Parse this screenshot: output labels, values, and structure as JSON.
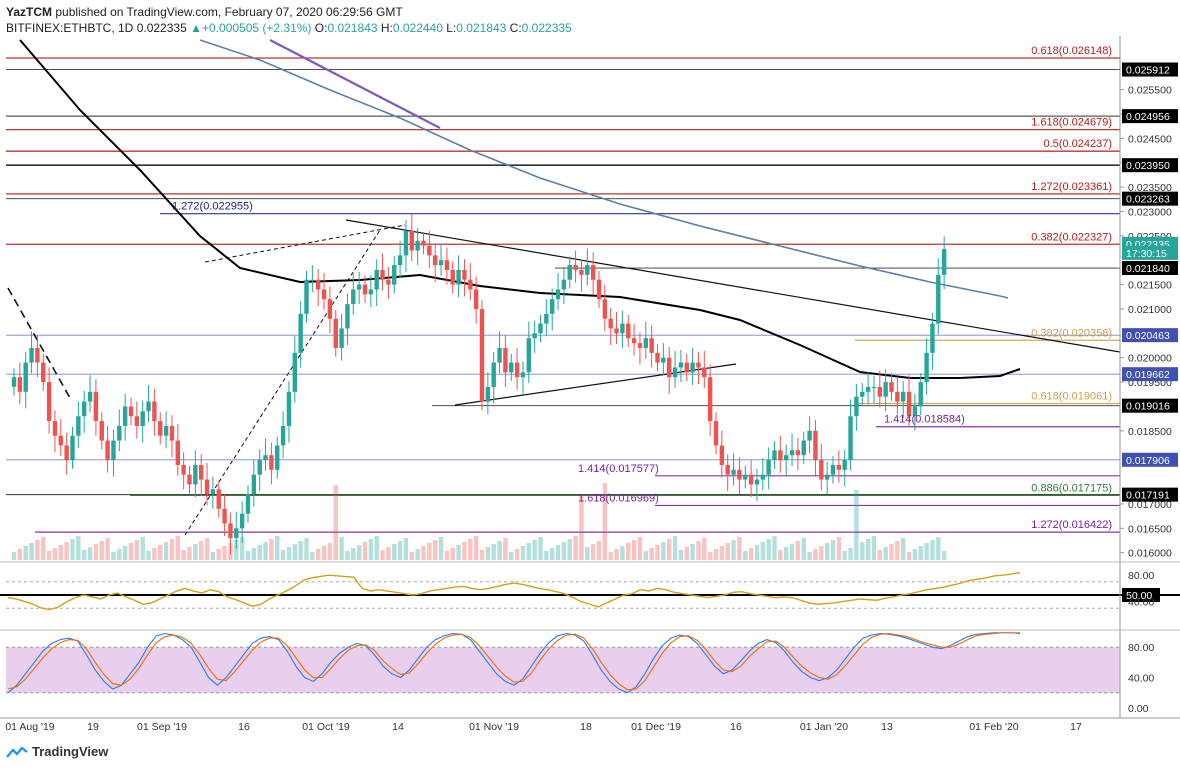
{
  "header": {
    "publisher": "YazTCM",
    "published_text": "published on TradingView.com, February 07, 2020 06:29:56 GMT",
    "symbol": "BITFINEX:ETHBTC, 1D",
    "last": "0.022335",
    "change": "+0.000505 (+2.31%)",
    "o_label": "O:",
    "o": "0.021843",
    "h_label": "H:",
    "h": "0.022440",
    "l_label": "L:",
    "l": "0.021843",
    "c_label": "C:",
    "c": "0.022335"
  },
  "brand": {
    "name": "TradingView"
  },
  "colors": {
    "up": "#26a69a",
    "down": "#ef5350",
    "ma": "#000000",
    "ma200": "#5b7fa8",
    "fib_red": "#b71c1c",
    "fib_gold": "#c9a24a",
    "fib_purple": "#7b1fa2",
    "fib_green": "#2e7d32",
    "fib_blue": "#1a237e",
    "rsi": "#d4a017",
    "stoch_k": "#2979ff",
    "stoch_d": "#ef6c00",
    "stoch_band": "#e1bee7"
  },
  "chart_data": [
    {
      "type": "candlestick",
      "title": "BITFINEX:ETHBTC, 1D",
      "ylim": [
        0.01585,
        0.0266
      ],
      "x_ticks": [
        "01 Aug '19",
        "19",
        "01 Sep '19",
        "16",
        "01 Oct '19",
        "14",
        "01 Nov '19",
        "18",
        "01 Dec '19",
        "16",
        "01 Jan '20",
        "13",
        "01 Feb '20",
        "17"
      ],
      "y_ticks": [
        "0.025500",
        "0.025000",
        "0.024500",
        "0.024000",
        "0.023500",
        "0.023000",
        "0.022500",
        "0.021500",
        "0.021000",
        "0.020000",
        "0.019500",
        "0.018500",
        "0.017000",
        "0.016500",
        "0.016000"
      ],
      "price_tags": [
        {
          "label": "0.025912",
          "value": 0.025912,
          "color": "#000000"
        },
        {
          "label": "0.024956",
          "value": 0.024956,
          "color": "#000000"
        },
        {
          "label": "0.023950",
          "value": 0.02395,
          "color": "#000000"
        },
        {
          "label": "0.023263",
          "value": 0.023263,
          "color": "#000000"
        },
        {
          "label": "0.022335",
          "value": 0.022335,
          "color": "#26a69a"
        },
        {
          "label": "17:30:15",
          "value": 0.02215,
          "color": "#26a69a"
        },
        {
          "label": "0.021840",
          "value": 0.02184,
          "color": "#000000"
        },
        {
          "label": "0.020463",
          "value": 0.020463,
          "color": "#3f51b5"
        },
        {
          "label": "0.019662",
          "value": 0.019662,
          "color": "#3f51b5"
        },
        {
          "label": "0.019016",
          "value": 0.019016,
          "color": "#000000"
        },
        {
          "label": "0.017906",
          "value": 0.017906,
          "color": "#3f51b5"
        },
        {
          "label": "0.017191",
          "value": 0.017191,
          "color": "#000000"
        }
      ],
      "levels": [
        {
          "label": "0.618(0.026148)",
          "value": 0.026148,
          "kind": "red"
        },
        {
          "label": "1.618(0.024679)",
          "value": 0.024679,
          "kind": "red"
        },
        {
          "label": "0.5(0.024237)",
          "value": 0.024237,
          "kind": "red"
        },
        {
          "label": "1.272(0.023361)",
          "value": 0.023361,
          "kind": "red"
        },
        {
          "label": "0.382(0.022327)",
          "value": 0.022327,
          "kind": "red"
        },
        {
          "label": "1.272(0.022955)",
          "value": 0.022955,
          "kind": "blue"
        },
        {
          "label": "0.382(0.020358)",
          "value": 0.020358,
          "kind": "gold"
        },
        {
          "label": "0.618(0.019061)",
          "value": 0.019061,
          "kind": "gold"
        },
        {
          "label": "1.414(0.018584)",
          "value": 0.018584,
          "kind": "purple"
        },
        {
          "label": "1.414(0.017577)",
          "value": 0.017577,
          "kind": "purple"
        },
        {
          "label": "0.886(0.017175)",
          "value": 0.017175,
          "kind": "green"
        },
        {
          "label": "1.618(0.016969)",
          "value": 0.016969,
          "kind": "purple"
        },
        {
          "label": "1.272(0.016422)",
          "value": 0.016422,
          "kind": "purple"
        }
      ],
      "closes": [
        0.0196,
        0.0193,
        0.0199,
        0.0202,
        0.0199,
        0.0195,
        0.0187,
        0.0184,
        0.0182,
        0.0179,
        0.0184,
        0.0188,
        0.0191,
        0.0193,
        0.0187,
        0.0183,
        0.0179,
        0.0183,
        0.0186,
        0.019,
        0.0188,
        0.0186,
        0.0189,
        0.0191,
        0.0187,
        0.0184,
        0.0186,
        0.0183,
        0.0178,
        0.0176,
        0.0174,
        0.0178,
        0.0175,
        0.0172,
        0.0173,
        0.0169,
        0.0166,
        0.0163,
        0.0165,
        0.0168,
        0.0172,
        0.0176,
        0.0179,
        0.018,
        0.0177,
        0.0182,
        0.0186,
        0.0193,
        0.0201,
        0.0209,
        0.0216,
        0.0216,
        0.0214,
        0.0212,
        0.0208,
        0.0202,
        0.0206,
        0.0211,
        0.0214,
        0.0215,
        0.0213,
        0.0214,
        0.0218,
        0.0216,
        0.0215,
        0.0219,
        0.0221,
        0.0226,
        0.0222,
        0.0224,
        0.0223,
        0.0221,
        0.0219,
        0.022,
        0.0218,
        0.0215,
        0.0218,
        0.0216,
        0.0214,
        0.021,
        0.0191,
        0.0194,
        0.0199,
        0.0202,
        0.0197,
        0.0199,
        0.0196,
        0.0197,
        0.0204,
        0.0205,
        0.0207,
        0.0209,
        0.0212,
        0.0214,
        0.0216,
        0.0219,
        0.0218,
        0.0217,
        0.0219,
        0.0216,
        0.0212,
        0.0208,
        0.0206,
        0.0205,
        0.0207,
        0.0204,
        0.0203,
        0.0202,
        0.0204,
        0.0201,
        0.0199,
        0.02,
        0.0196,
        0.0198,
        0.0199,
        0.0197,
        0.0199,
        0.0198,
        0.0196,
        0.0187,
        0.0182,
        0.0178,
        0.0176,
        0.0177,
        0.0175,
        0.0176,
        0.0174,
        0.0175,
        0.0176,
        0.0179,
        0.0181,
        0.0179,
        0.018,
        0.0181,
        0.018,
        0.0183,
        0.0185,
        0.0179,
        0.0175,
        0.0176,
        0.0178,
        0.0177,
        0.0179,
        0.0188,
        0.0192,
        0.0193,
        0.0194,
        0.0194,
        0.0192,
        0.0195,
        0.0193,
        0.0191,
        0.0193,
        0.0188,
        0.019,
        0.0195,
        0.0201,
        0.0207,
        0.0217,
        0.02223
      ]
    },
    {
      "type": "line",
      "title": "",
      "ylim": [
        0,
        100
      ],
      "y_ticks": [
        "80.00",
        "50.00",
        "40.00"
      ],
      "values": [
        46,
        44,
        40,
        36,
        30,
        28,
        32,
        40,
        46,
        50,
        47,
        44,
        50,
        53,
        47,
        42,
        36,
        38,
        44,
        50,
        56,
        60,
        56,
        53,
        58,
        55,
        47,
        43,
        38,
        33,
        36,
        44,
        50,
        56,
        63,
        72,
        76,
        78,
        80,
        79,
        78,
        77,
        60,
        56,
        58,
        56,
        54,
        52,
        50,
        52,
        56,
        58,
        60,
        62,
        63,
        60,
        58,
        60,
        63,
        66,
        68,
        66,
        63,
        60,
        58,
        55,
        52,
        46,
        40,
        36,
        32,
        38,
        44,
        50,
        52,
        58,
        56,
        60,
        58,
        54,
        52,
        50,
        48,
        46,
        48,
        50,
        54,
        55,
        52,
        50,
        48,
        46,
        47,
        46,
        42,
        38,
        36,
        37,
        38,
        40,
        42,
        44,
        43,
        42,
        45,
        47,
        50,
        52,
        55,
        58,
        60,
        62,
        65,
        68,
        72,
        74,
        76,
        79,
        80,
        82,
        84
      ]
    },
    {
      "type": "line",
      "title": "",
      "ylim": [
        0,
        100
      ],
      "y_ticks": [
        "80.00",
        "40.00",
        "0.00"
      ],
      "series": [
        {
          "values": [
            20,
            30,
            45,
            60,
            75,
            85,
            90,
            92,
            88,
            70,
            50,
            35,
            25,
            30,
            45,
            60,
            80,
            95,
            98,
            96,
            90,
            80,
            60,
            40,
            30,
            40,
            55,
            70,
            85,
            92,
            94,
            90,
            75,
            55,
            40,
            35,
            45,
            60,
            72,
            80,
            85,
            82,
            70,
            55,
            45,
            40,
            50,
            65,
            80,
            90,
            95,
            98,
            97,
            90,
            75,
            60,
            45,
            35,
            30,
            38,
            55,
            72,
            86,
            95,
            98,
            96,
            88,
            70,
            50,
            35,
            25,
            20,
            28,
            45,
            65,
            82,
            92,
            96,
            94,
            85,
            70,
            55,
            45,
            50,
            62,
            75,
            85,
            90,
            86,
            75,
            60,
            48,
            40,
            36,
            40,
            50,
            65,
            80,
            92,
            96,
            98,
            97,
            95,
            92,
            88,
            84,
            80,
            78,
            82,
            88,
            94,
            97,
            98,
            99,
            99,
            99,
            98
          ]
        },
        {
          "values": [
            25,
            28,
            38,
            52,
            66,
            78,
            86,
            90,
            89,
            78,
            60,
            44,
            32,
            30,
            38,
            52,
            70,
            86,
            94,
            96,
            93,
            85,
            70,
            52,
            38,
            36,
            48,
            62,
            76,
            87,
            92,
            92,
            82,
            66,
            50,
            40,
            40,
            52,
            65,
            76,
            82,
            83,
            76,
            62,
            52,
            44,
            46,
            58,
            72,
            84,
            92,
            96,
            97,
            93,
            82,
            68,
            54,
            42,
            34,
            35,
            46,
            63,
            78,
            89,
            96,
            97,
            92,
            78,
            60,
            44,
            32,
            24,
            25,
            36,
            54,
            72,
            86,
            94,
            95,
            89,
            77,
            62,
            50,
            48,
            55,
            68,
            78,
            87,
            88,
            80,
            67,
            55,
            46,
            40,
            38,
            44,
            56,
            70,
            84,
            93,
            97,
            98,
            96,
            94,
            90,
            86,
            83,
            80,
            80,
            84,
            90,
            95,
            97,
            98,
            99,
            99,
            99
          ]
        }
      ]
    }
  ]
}
